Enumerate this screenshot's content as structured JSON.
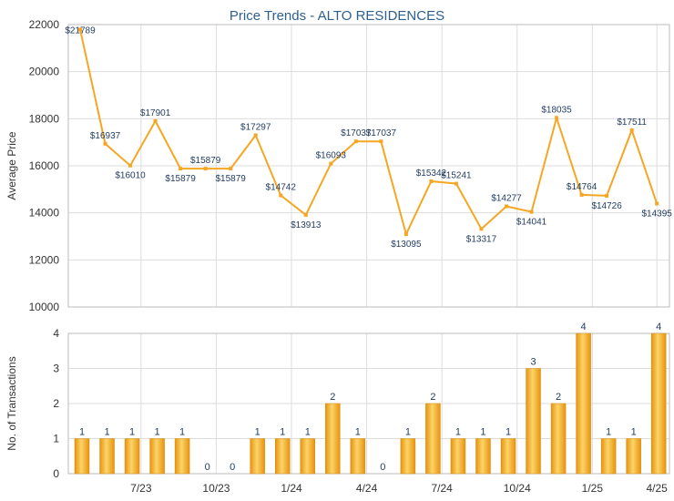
{
  "chart_data": [
    {
      "type": "line",
      "title": "Price Trends - ALTO RESIDENCES",
      "ylabel": "Average Price",
      "ylim": [
        10000,
        22000
      ],
      "yticks": [
        10000,
        12000,
        14000,
        16000,
        18000,
        20000,
        22000
      ],
      "grid": true,
      "line_color": "#f5a623",
      "label_prefix": "$",
      "series": [
        {
          "values": [
            21789,
            16937,
            16010,
            17901,
            15879,
            15879,
            15879,
            17297,
            14742,
            13913,
            16093,
            17037,
            17037,
            13095,
            15342,
            15241,
            13317,
            14277,
            14041,
            18035,
            14764,
            14726,
            17511,
            14395
          ]
        }
      ]
    },
    {
      "type": "bar",
      "ylabel": "No. of Transactions",
      "ylim": [
        0,
        4
      ],
      "yticks": [
        0,
        1,
        2,
        3,
        4
      ],
      "grid": true,
      "bar_color": "#f5a623",
      "xticks": [
        "7/23",
        "10/23",
        "1/24",
        "4/24",
        "7/24",
        "10/24",
        "1/25",
        "4/25"
      ],
      "values": [
        1,
        1,
        1,
        1,
        1,
        0,
        0,
        1,
        1,
        1,
        2,
        1,
        0,
        1,
        2,
        1,
        1,
        1,
        3,
        2,
        4,
        1,
        1,
        4
      ]
    }
  ]
}
